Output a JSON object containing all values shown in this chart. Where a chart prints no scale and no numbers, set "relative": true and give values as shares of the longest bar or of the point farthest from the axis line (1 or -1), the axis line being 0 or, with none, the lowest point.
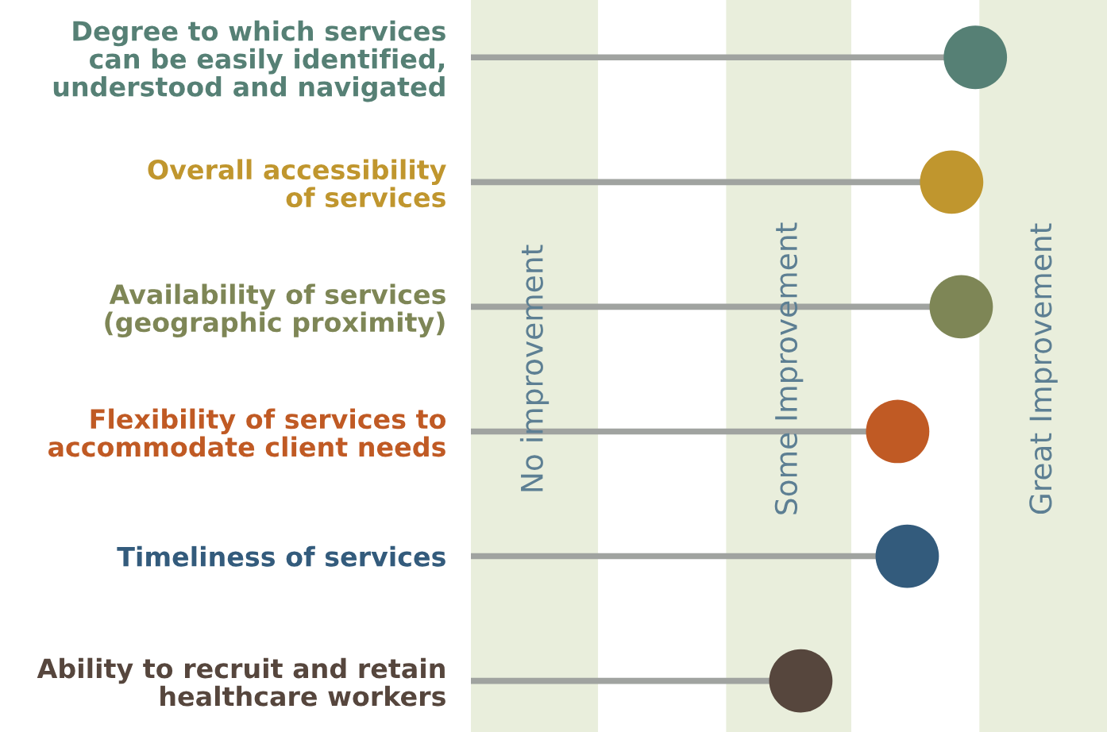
{
  "chart_data": {
    "type": "lollipop",
    "orientation": "horizontal",
    "relative": true,
    "tick_labels": "y",
    "categories": [
      "Degree to which services\ncan be easily identified,\nunderstood and navigated",
      "Overall accessibility\nof services",
      "Availability of services\n(geographic proximity)",
      "Flexibility of services to\naccommodate client needs",
      "Timeliness of services",
      "Ability to recruit and retain\nhealthcare workers"
    ],
    "values": [
      1,
      0.953,
      0.972,
      0.846,
      0.865,
      0.654
    ],
    "colors": [
      "#568075",
      "#c0962e",
      "#7e8656",
      "#c05a24",
      "#335b7c",
      "#56463d"
    ],
    "bands": [
      {
        "axis": "x",
        "from": 0,
        "to": 0.252,
        "label": "No improvement",
        "color": "#e9eedc"
      },
      {
        "axis": "x",
        "from": 0.506,
        "to": 0.754,
        "label": "Some Improvement",
        "color": "#e9eedc"
      },
      {
        "axis": "x",
        "from": 1.008,
        "to": 1.261,
        "label": "Great Improvement",
        "color": "#e9eedc"
      }
    ]
  }
}
